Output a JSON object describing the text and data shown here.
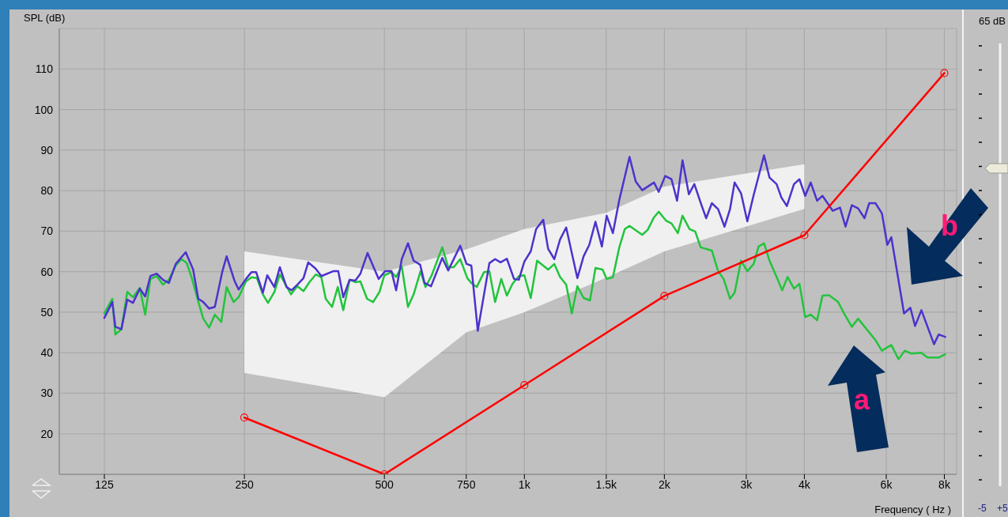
{
  "chart_data": {
    "type": "line",
    "ylabel": "SPL (dB)",
    "xlabel": "Frequency ( Hz )",
    "log": "x",
    "grid": true,
    "xlim": [
      100,
      8500
    ],
    "xticks": [
      125,
      250,
      500,
      750,
      {
        "value": 1000,
        "label": "1k"
      },
      {
        "value": 1500,
        "label": "1.5k"
      },
      {
        "value": 2000,
        "label": "2k"
      },
      {
        "value": 3000,
        "label": "3k"
      },
      {
        "value": 4000,
        "label": "4k"
      },
      {
        "value": 6000,
        "label": "6k"
      },
      {
        "value": 8000,
        "label": "8k"
      }
    ],
    "ylim": [
      10,
      120
    ],
    "yticks": [
      20,
      30,
      40,
      50,
      60,
      70,
      80,
      90,
      100,
      110
    ],
    "annotations": [
      "a",
      "b",
      "65 dB",
      "-5",
      "+5"
    ],
    "series": [
      {
        "type": "area",
        "color": "#f0f0f0",
        "x": [
          250,
          500,
          750,
          1000,
          1500,
          2000,
          4000
        ],
        "lower": [
          35,
          29,
          45,
          50,
          58.5,
          65,
          75.5
        ],
        "upper": [
          65,
          60,
          65.5,
          70.5,
          74.5,
          81,
          86.5
        ],
        "values": [
          null,
          null,
          null,
          null,
          null,
          null,
          null
        ]
      },
      {
        "type": "line",
        "color": "#22c43c",
        "marker": "none",
        "x": [
          125,
          130,
          132,
          136,
          140,
          144,
          149,
          153,
          157,
          162,
          167,
          172,
          178,
          183,
          188,
          193,
          198,
          204,
          210,
          216,
          223,
          229,
          237,
          243,
          252,
          259,
          266,
          274,
          281,
          290,
          298,
          308,
          315,
          325,
          335,
          345,
          356,
          366,
          374,
          386,
          397,
          408,
          421,
          433,
          444,
          459,
          473,
          488,
          500,
          518,
          530,
          545,
          562,
          578,
          598,
          613,
          632,
          666,
          686,
          705,
          728,
          754,
          769,
          790,
          819,
          841,
          865,
          892,
          917,
          943,
          973,
          1000,
          1032,
          1065,
          1125,
          1160,
          1193,
          1230,
          1265,
          1300,
          1341,
          1384,
          1422,
          1473,
          1503,
          1550,
          1600,
          1644,
          1683,
          1792,
          1841,
          1900,
          1945,
          2016,
          2072,
          2138,
          2188,
          2266,
          2330,
          2394,
          2530,
          2610,
          2682,
          2768,
          2832,
          2924,
          3016,
          3112,
          3188,
          3276,
          3366,
          3486,
          3584,
          3682,
          3800,
          3904,
          4016,
          4128,
          4260,
          4376,
          4520,
          4728,
          4884,
          5060,
          5220,
          5688,
          5872,
          6152,
          6376,
          6576,
          6784,
          7140,
          7364,
          7780,
          8032
        ],
        "values": [
          49.7,
          53.3,
          44.5,
          45.8,
          55.0,
          53.7,
          56.0,
          49.4,
          58.2,
          58.9,
          56.8,
          58.0,
          61.5,
          63.1,
          62.1,
          58.2,
          53.5,
          48.4,
          46.2,
          49.4,
          47.6,
          56.2,
          52.5,
          53.7,
          57.6,
          58.6,
          58.4,
          54.4,
          52.3,
          55.0,
          59.3,
          56.4,
          54.4,
          56.4,
          55.2,
          57.4,
          59.3,
          58.6,
          53.3,
          51.3,
          56.2,
          50.5,
          58.0,
          57.4,
          57.6,
          53.3,
          52.5,
          55.0,
          59.1,
          59.9,
          58.7,
          61.3,
          51.3,
          54.4,
          60.1,
          56.2,
          59.1,
          66.0,
          61.1,
          61.1,
          63.1,
          58.4,
          57.2,
          56.2,
          59.9,
          60.1,
          52.5,
          58.2,
          54.1,
          57.0,
          58.9,
          59.1,
          53.5,
          62.7,
          60.5,
          61.9,
          58.7,
          56.8,
          49.7,
          56.4,
          53.5,
          52.9,
          60.9,
          60.5,
          58.2,
          58.6,
          66.0,
          70.5,
          71.3,
          69.1,
          70.3,
          73.4,
          74.8,
          72.6,
          71.9,
          69.5,
          73.8,
          70.5,
          69.9,
          66.0,
          65.2,
          60.1,
          58.2,
          53.3,
          54.8,
          62.7,
          60.1,
          61.9,
          66.2,
          67.0,
          62.7,
          58.7,
          55.4,
          58.7,
          55.8,
          57.0,
          48.8,
          49.4,
          48.0,
          54.1,
          54.2,
          52.5,
          49.4,
          46.4,
          48.4,
          43.1,
          40.5,
          41.9,
          38.4,
          40.5,
          39.8,
          40.0,
          38.8,
          38.8,
          39.6
        ]
      },
      {
        "type": "line",
        "color": "#4c33cc",
        "marker": "none",
        "x": [
          125,
          130,
          132,
          136,
          140,
          144,
          149,
          153,
          157,
          162,
          167,
          172,
          178,
          187,
          194,
          199,
          204,
          210,
          216,
          224,
          229,
          238,
          243,
          252,
          259,
          265,
          274,
          280,
          290,
          298,
          308,
          316,
          325,
          335,
          343,
          356,
          366,
          388,
          398,
          408,
          421,
          433,
          444,
          460,
          486,
          502,
          518,
          530,
          545,
          562,
          578,
          597,
          610,
          630,
          666,
          686,
          728,
          751,
          769,
          794,
          841,
          865,
          889,
          917,
          950,
          973,
          1000,
          1032,
          1060,
          1098,
          1125,
          1160,
          1193,
          1230,
          1300,
          1341,
          1379,
          1422,
          1468,
          1503,
          1550,
          1600,
          1683,
          1736,
          1792,
          1900,
          1945,
          2008,
          2072,
          2130,
          2188,
          2258,
          2320,
          2404,
          2460,
          2530,
          2610,
          2694,
          2768,
          2832,
          2924,
          3016,
          3112,
          3276,
          3366,
          3486,
          3570,
          3668,
          3800,
          3904,
          4016,
          4128,
          4260,
          4376,
          4604,
          4772,
          4904,
          5060,
          5220,
          5388,
          5516,
          5688,
          5872,
          6032,
          6152,
          6552,
          6760,
          6920,
          7140,
          7600,
          7780,
          8032
        ],
        "values": [
          48.6,
          52.5,
          46.4,
          45.8,
          53.1,
          52.3,
          55.8,
          53.9,
          58.9,
          59.5,
          58.0,
          57.2,
          61.9,
          64.8,
          60.5,
          53.3,
          52.5,
          50.9,
          51.3,
          59.9,
          63.8,
          57.8,
          55.6,
          58.2,
          59.9,
          59.9,
          54.8,
          59.1,
          56.2,
          61.1,
          56.2,
          55.4,
          56.8,
          58.4,
          62.3,
          60.7,
          58.9,
          60.1,
          60.1,
          53.7,
          58.0,
          57.8,
          59.5,
          64.6,
          58.2,
          60.1,
          60.1,
          55.4,
          63.1,
          67.0,
          62.7,
          61.7,
          57.2,
          56.4,
          63.4,
          60.3,
          66.4,
          61.9,
          61.5,
          45.4,
          62.1,
          63.1,
          62.3,
          63.2,
          58.2,
          58.0,
          62.5,
          65.0,
          70.5,
          72.8,
          65.6,
          63.1,
          67.9,
          70.9,
          58.4,
          63.8,
          66.6,
          72.3,
          66.2,
          73.8,
          69.5,
          77.7,
          88.3,
          82.2,
          80.1,
          82.0,
          79.7,
          83.6,
          82.8,
          77.5,
          87.5,
          79.1,
          81.6,
          76.4,
          73.2,
          76.9,
          75.4,
          71.1,
          75.4,
          82.0,
          79.3,
          72.4,
          78.9,
          88.7,
          83.2,
          81.6,
          78.3,
          76.2,
          81.6,
          82.8,
          78.7,
          82.0,
          77.5,
          78.7,
          75.0,
          75.8,
          71.1,
          76.4,
          75.6,
          73.2,
          76.9,
          76.9,
          74.4,
          66.6,
          68.5,
          49.7,
          51.1,
          46.6,
          50.5,
          42.1,
          44.5,
          43.9
        ]
      },
      {
        "type": "line",
        "color": "#ff0000",
        "marker": "circle",
        "x": [
          250,
          500,
          1000,
          2000,
          4000,
          8000
        ],
        "values": [
          24,
          10,
          32,
          54,
          69,
          109
        ]
      }
    ]
  }
}
